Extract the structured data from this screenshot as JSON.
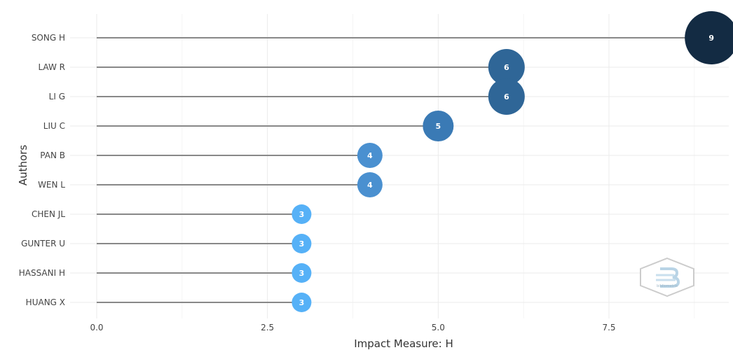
{
  "chart_data": {
    "type": "scatter",
    "xlabel": "Impact Measure: H",
    "ylabel": "Authors",
    "xlim": [
      -0.5,
      9.0
    ],
    "xticks": [
      "0.0",
      "2.5",
      "5.0",
      "7.5"
    ],
    "xtick_values": [
      0,
      2.5,
      5,
      7.5
    ],
    "grid": true,
    "categories": [
      "SONG H",
      "LAW R",
      "LI G",
      "LIU C",
      "PAN B",
      "WEN L",
      "CHEN JL",
      "GUNTER U",
      "HASSANI H",
      "HUANG X"
    ],
    "values": [
      9,
      6,
      6,
      5,
      4,
      4,
      3,
      3,
      3,
      3
    ],
    "labels": [
      "9",
      "6",
      "6",
      "5",
      "4",
      "4",
      "3",
      "3",
      "3",
      "3"
    ],
    "colors": {
      "9": "#132b43",
      "6": "#2f6697",
      "5": "#3a7ab5",
      "4": "#4a90d0",
      "3": "#56b1f7"
    },
    "stem_color": "#888888"
  },
  "logo": {
    "text": "bibliometrix"
  }
}
